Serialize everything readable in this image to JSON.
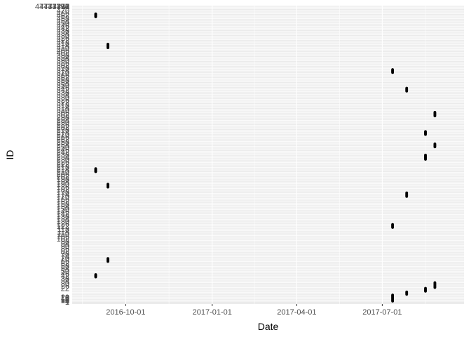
{
  "chart_data": {
    "type": "scatter",
    "title": "",
    "xlabel": "Date",
    "ylabel": "ID",
    "grid": true,
    "x_ticks": [
      "2016-10-01",
      "2017-01-01",
      "2017-04-01",
      "2017-07-01"
    ],
    "xlim": [
      "2016-08-05",
      "2017-09-26"
    ],
    "y_range": [
      1,
      477
    ],
    "y_tick_labels_visible": [
      "1",
      "4",
      "7",
      "10",
      "12",
      "14",
      "16",
      "18",
      "20",
      "477",
      "4773",
      "47733",
      "477333",
      "4773339",
      "47733391",
      "NA"
    ],
    "point_color": "#000000",
    "series": [
      {
        "clusters": [
          {
            "date": "2016-08-30",
            "ids": [
              460,
              461,
              462,
              463,
              464,
              465
            ]
          },
          {
            "date": "2016-09-12",
            "ids": [
              410,
              411,
              412,
              413,
              414,
              415,
              416
            ]
          },
          {
            "date": "2017-07-12",
            "ids": [
              1,
              2,
              3,
              4,
              5,
              6,
              7,
              8,
              9,
              10,
              11
            ]
          },
          {
            "date": "2017-07-27",
            "ids": [
              12,
              13,
              14,
              15,
              16
            ]
          },
          {
            "date": "2017-08-16",
            "ids": [
              17,
              18,
              19,
              20,
              21,
              22
            ]
          },
          {
            "date": "2017-08-26",
            "ids": [
              23,
              24,
              25,
              26,
              27,
              28,
              29,
              30,
              31
            ]
          },
          {
            "date": "2016-08-30",
            "ids": [
              210,
              211,
              212,
              213,
              214,
              215
            ]
          },
          {
            "date": "2016-09-12",
            "ids": [
              185,
              186,
              187,
              188,
              189,
              190
            ]
          },
          {
            "date": "2017-07-12",
            "ids": [
              370,
              371,
              372,
              373,
              374,
              375
            ]
          },
          {
            "date": "2017-07-27",
            "ids": [
              340,
              341,
              342,
              343,
              344,
              345
            ]
          },
          {
            "date": "2017-08-16",
            "ids": [
              270,
              271,
              272,
              273,
              274,
              275
            ]
          },
          {
            "date": "2017-08-26",
            "ids": [
              250,
              251,
              252,
              253,
              254,
              255
            ]
          },
          {
            "date": "2016-08-30",
            "ids": [
              40,
              41,
              42,
              43,
              44
            ]
          },
          {
            "date": "2016-09-12",
            "ids": [
              65,
              66,
              67,
              68,
              69,
              70
            ]
          },
          {
            "date": "2017-07-12",
            "ids": [
              120,
              121,
              122,
              123,
              124,
              125
            ]
          },
          {
            "date": "2017-07-27",
            "ids": [
              170,
              171,
              172,
              173,
              174,
              175,
              176
            ]
          },
          {
            "date": "2017-08-16",
            "ids": [
              230,
              231,
              232,
              233,
              234,
              235,
              236,
              237
            ]
          },
          {
            "date": "2017-08-26",
            "ids": [
              300,
              301,
              302,
              303,
              304,
              305,
              306
            ]
          }
        ]
      }
    ]
  }
}
